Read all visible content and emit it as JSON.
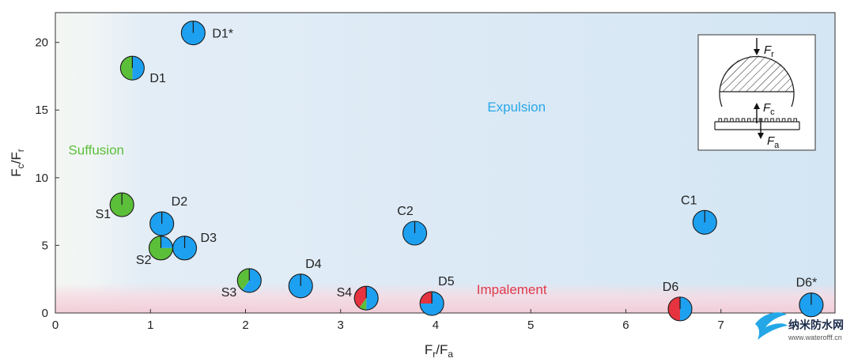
{
  "chart_data": {
    "type": "scatter",
    "xlim": [
      0,
      8.2
    ],
    "ylim": [
      0,
      22.2
    ],
    "x_ticks": [
      0,
      1,
      2,
      3,
      4,
      5,
      6,
      7
    ],
    "y_ticks": [
      0,
      5,
      10,
      15,
      20
    ],
    "xlabel": {
      "main": "F",
      "sub1": "r",
      "slash": "/F",
      "sub2": "a"
    },
    "ylabel": {
      "main": "F",
      "sub1": "c",
      "slash": "/F",
      "sub2": "r"
    },
    "regions": [
      {
        "name": "Suffusion",
        "color": "#5cbf3a",
        "x": 0.43,
        "y": 11.7
      },
      {
        "name": "Expulsion",
        "color": "#2aa7e8",
        "x": 4.85,
        "y": 14.9
      },
      {
        "name": "Impalement",
        "color": "#e0394a",
        "x": 4.8,
        "y": 1.4
      }
    ],
    "colors": {
      "expulsion": "#1ea0f0",
      "suffusion": "#5cbf3a",
      "impalement": "#e5343f"
    },
    "points": [
      {
        "label": "D1*",
        "x": 1.45,
        "y": 20.7,
        "fractions": {
          "expulsion": 1.0,
          "suffusion": 0.0,
          "impalement": 0.0
        }
      },
      {
        "label": "D1",
        "x": 0.81,
        "y": 18.1,
        "fractions": {
          "expulsion": 0.5,
          "suffusion": 0.5,
          "impalement": 0.0
        }
      },
      {
        "label": "D2",
        "x": 1.12,
        "y": 6.6,
        "fractions": {
          "expulsion": 1.0,
          "suffusion": 0.0,
          "impalement": 0.0
        }
      },
      {
        "label": "D3",
        "x": 1.36,
        "y": 4.8,
        "fractions": {
          "expulsion": 1.0,
          "suffusion": 0.0,
          "impalement": 0.0
        }
      },
      {
        "label": "S1",
        "x": 0.7,
        "y": 8.0,
        "fractions": {
          "expulsion": 0.0,
          "suffusion": 1.0,
          "impalement": 0.0
        }
      },
      {
        "label": "S2",
        "x": 1.11,
        "y": 4.8,
        "fractions": {
          "expulsion": 0.25,
          "suffusion": 0.75,
          "impalement": 0.0
        }
      },
      {
        "label": "S3",
        "x": 2.04,
        "y": 2.4,
        "fractions": {
          "expulsion": 0.6,
          "suffusion": 0.4,
          "impalement": 0.0
        }
      },
      {
        "label": "D4",
        "x": 2.58,
        "y": 2.0,
        "fractions": {
          "expulsion": 1.0,
          "suffusion": 0.0,
          "impalement": 0.0
        }
      },
      {
        "label": "S4",
        "x": 3.27,
        "y": 1.1,
        "fractions": {
          "expulsion": 0.5,
          "suffusion": 0.1,
          "impalement": 0.4
        }
      },
      {
        "label": "C2",
        "x": 3.78,
        "y": 5.9,
        "fractions": {
          "expulsion": 1.0,
          "suffusion": 0.0,
          "impalement": 0.0
        }
      },
      {
        "label": "D5",
        "x": 3.96,
        "y": 0.7,
        "fractions": {
          "expulsion": 0.75,
          "suffusion": 0.0,
          "impalement": 0.25
        }
      },
      {
        "label": "C1",
        "x": 6.83,
        "y": 6.7,
        "fractions": {
          "expulsion": 1.0,
          "suffusion": 0.0,
          "impalement": 0.0
        }
      },
      {
        "label": "D6",
        "x": 6.57,
        "y": 0.3,
        "fractions": {
          "expulsion": 0.5,
          "suffusion": 0.0,
          "impalement": 0.5
        }
      },
      {
        "label": "D6*",
        "x": 7.95,
        "y": 0.6,
        "fractions": {
          "expulsion": 1.0,
          "suffusion": 0.0,
          "impalement": 0.0
        }
      }
    ],
    "inset": {
      "labels": [
        {
          "main": "F",
          "sub": "r"
        },
        {
          "main": "F",
          "sub": "c"
        },
        {
          "main": "F",
          "sub": "a"
        }
      ]
    }
  },
  "watermark": {
    "name": "纳米防水网",
    "url": "www.waterofff.cn"
  }
}
